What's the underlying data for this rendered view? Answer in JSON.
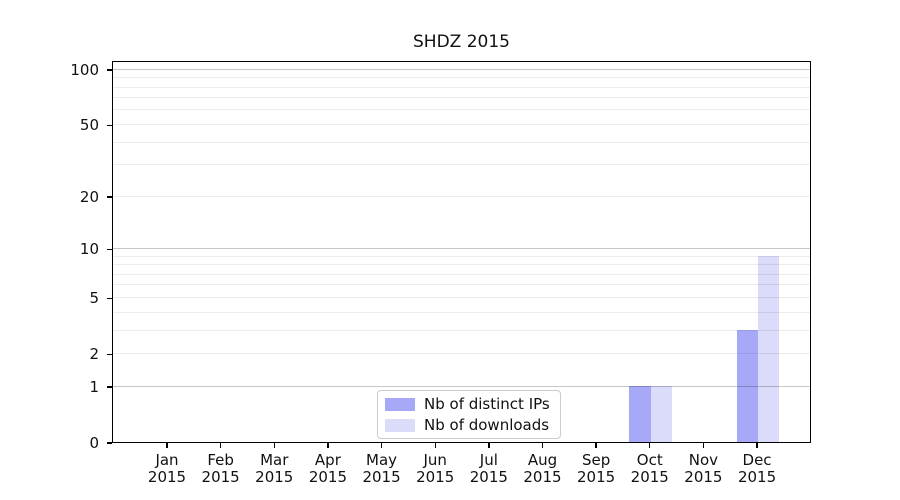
{
  "chart_data": {
    "type": "bar",
    "title": "SHDZ 2015",
    "categories": [
      "Jan",
      "Feb",
      "Mar",
      "Apr",
      "May",
      "Jun",
      "Jul",
      "Aug",
      "Sep",
      "Oct",
      "Nov",
      "Dec"
    ],
    "category_year": "2015",
    "series": [
      {
        "name": "Nb of distinct IPs",
        "color": "#a8a8f8",
        "values": [
          0,
          0,
          0,
          0,
          0,
          0,
          0,
          0,
          0,
          1,
          0,
          3
        ]
      },
      {
        "name": "Nb of downloads",
        "color": "#dbdbfa",
        "values": [
          0,
          0,
          0,
          0,
          0,
          0,
          0,
          0,
          0,
          1,
          0,
          9
        ]
      }
    ],
    "xlabel": "",
    "ylabel": "",
    "yscale": "log1p",
    "ylim": [
      0,
      112
    ],
    "yticks": [
      0,
      1,
      2,
      5,
      10,
      20,
      50,
      100
    ],
    "grid_major": [
      1,
      10,
      100
    ],
    "grid_minor": [
      2,
      3,
      4,
      5,
      6,
      7,
      8,
      9,
      20,
      30,
      40,
      50,
      60,
      70,
      80,
      90
    ],
    "grid": "on",
    "legend_position": "lower center"
  }
}
